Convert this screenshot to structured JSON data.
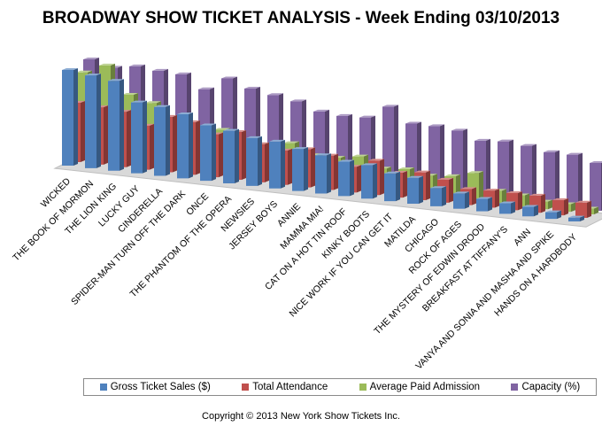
{
  "chart_data": {
    "type": "bar",
    "title": "BROADWAY SHOW TICKET ANALYSIS - Week Ending 03/10/2013",
    "categories": [
      "WICKED",
      "THE BOOK OF MORMON",
      "THE LION KING",
      "LUCKY GUY",
      "CINDERELLA",
      "SPIDER-MAN TURN OFF THE DARK",
      "ONCE",
      "THE PHANTOM OF THE OPERA",
      "NEWSIES",
      "JERSEY BOYS",
      "ANNIE",
      "MAMMA MIA!",
      "CAT ON A HOT TIN ROOF",
      "KINKY BOOTS",
      "NICE WORK IF YOU CAN GET IT",
      "MATILDA",
      "CHICAGO",
      "ROCK OF AGES",
      "THE MYSTERY OF EDWIN DROOD",
      "BREAKFAST AT TIFFANY'S",
      "ANN",
      "VANYA AND SONIA AND MASHA AND SPIKE",
      "HANDS ON A HARDBODY"
    ],
    "series": [
      {
        "name": "Gross Ticket Sales ($)",
        "color": "#4F81BD",
        "values": [
          100,
          97,
          94,
          74,
          72,
          67,
          58,
          55,
          50,
          49,
          44,
          40,
          36,
          35,
          29,
          27,
          19,
          16,
          13,
          11,
          10,
          7,
          4
        ]
      },
      {
        "name": "Total Attendance",
        "color": "#C0504D",
        "values": [
          62,
          60,
          58,
          46,
          58,
          55,
          45,
          50,
          40,
          36,
          40,
          36,
          27,
          36,
          26,
          29,
          24,
          17,
          18,
          18,
          18,
          16,
          16
        ]
      },
      {
        "name": "Average Paid Admission",
        "color": "#9BBB59",
        "values": [
          90,
          100,
          72,
          66,
          50,
          40,
          46,
          30,
          36,
          40,
          30,
          30,
          34,
          24,
          26,
          22,
          24,
          30,
          14,
          12,
          8,
          8,
          6
        ]
      },
      {
        "name": "Capacity (%)",
        "color": "#8064A2",
        "values": [
          100,
          94,
          98,
          96,
          95,
          82,
          96,
          88,
          84,
          80,
          72,
          70,
          71,
          85,
          70,
          70,
          68,
          60,
          62,
          60,
          56,
          56,
          50
        ]
      }
    ],
    "legend_position": "bottom",
    "ylim": [
      0,
      100
    ],
    "xlabel": "",
    "ylabel": ""
  },
  "footer": {
    "copyright": "Copyright © 2013 New York Show Tickets Inc."
  }
}
